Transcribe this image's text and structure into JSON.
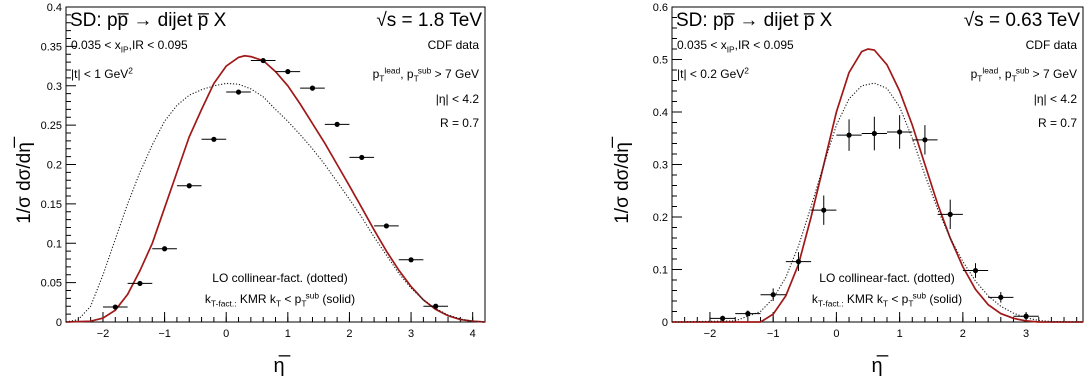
{
  "chart_data": [
    {
      "type": "scatter",
      "title": "SD: pp̅ → dijet p̅ X",
      "energy": "√s = 1.8 TeV",
      "xlabel": "η̅",
      "ylabel": "1/σ  dσ/dη̅",
      "xlim": [
        -2.6,
        4.2
      ],
      "ylim": [
        0,
        0.4
      ],
      "xticks": [
        -2,
        -1,
        0,
        1,
        2,
        3,
        4
      ],
      "yticks": [
        0,
        0.05,
        0.1,
        0.15,
        0.2,
        0.25,
        0.3,
        0.35,
        0.4
      ],
      "xtick_labels": [
        "−2",
        "−1",
        "0",
        "1",
        "2",
        "3",
        "4"
      ],
      "ytick_labels": [
        "0",
        "0.05",
        "0.1",
        "0.15",
        "0.2",
        "0.25",
        "0.3",
        "0.35",
        "0.4"
      ],
      "cuts_left": [
        "0.035 < x_IP,IR < 0.095",
        "|t| < 1 GeV^2"
      ],
      "cuts_right": [
        "CDF data",
        "p_T^lead, p_T^sub > 7 GeV",
        "|η| < 4.2",
        "R = 0.7"
      ],
      "legend_lines": [
        "LO collinear-fact. (dotted)",
        "k_T-fact.: KMR k_T < p_T^sub (solid)"
      ],
      "series": [
        {
          "name": "CDF data",
          "style": "points",
          "x": [
            -1.8,
            -1.4,
            -1.0,
            -0.6,
            -0.2,
            0.2,
            0.6,
            1.0,
            1.4,
            1.8,
            2.2,
            2.6,
            3.0,
            3.4
          ],
          "y": [
            0.019,
            0.049,
            0.093,
            0.173,
            0.232,
            0.292,
            0.332,
            0.318,
            0.297,
            0.251,
            0.209,
            0.122,
            0.079,
            0.02
          ],
          "xerr": 0.2,
          "yerr": 0.002
        },
        {
          "name": "k_T-fact.: KMR k_T < p_T^sub",
          "style": "solid",
          "x": [
            -2.6,
            -2.2,
            -2.0,
            -1.8,
            -1.6,
            -1.4,
            -1.2,
            -1.0,
            -0.8,
            -0.6,
            -0.4,
            -0.2,
            0.0,
            0.2,
            0.3,
            0.4,
            0.6,
            0.8,
            1.0,
            1.2,
            1.4,
            1.6,
            1.8,
            2.0,
            2.2,
            2.4,
            2.6,
            2.8,
            3.0,
            3.2,
            3.4,
            3.6,
            3.8,
            4.0,
            4.2
          ],
          "y": [
            0.0,
            0.001,
            0.005,
            0.015,
            0.035,
            0.065,
            0.1,
            0.145,
            0.19,
            0.235,
            0.27,
            0.303,
            0.325,
            0.336,
            0.338,
            0.337,
            0.332,
            0.318,
            0.3,
            0.277,
            0.252,
            0.227,
            0.2,
            0.173,
            0.145,
            0.117,
            0.09,
            0.066,
            0.045,
            0.028,
            0.016,
            0.008,
            0.003,
            0.001,
            0.0
          ]
        },
        {
          "name": "LO collinear-fact.",
          "style": "dotted",
          "x": [
            -2.6,
            -2.4,
            -2.2,
            -2.0,
            -1.8,
            -1.6,
            -1.4,
            -1.2,
            -1.0,
            -0.8,
            -0.6,
            -0.4,
            -0.2,
            0.0,
            0.2,
            0.4,
            0.6,
            0.8,
            1.0,
            1.2,
            1.4,
            1.6,
            1.8,
            2.0,
            2.2,
            2.4,
            2.6,
            2.8,
            3.0,
            3.2,
            3.4,
            3.6,
            3.8,
            4.0,
            4.2
          ],
          "y": [
            0.0,
            0.003,
            0.02,
            0.06,
            0.105,
            0.15,
            0.19,
            0.225,
            0.255,
            0.275,
            0.288,
            0.295,
            0.3,
            0.303,
            0.302,
            0.296,
            0.286,
            0.27,
            0.255,
            0.238,
            0.22,
            0.2,
            0.178,
            0.156,
            0.133,
            0.108,
            0.085,
            0.062,
            0.043,
            0.028,
            0.017,
            0.009,
            0.004,
            0.001,
            0.0
          ]
        }
      ]
    },
    {
      "type": "scatter",
      "title": "SD: pp̅ → dijet p̅ X",
      "energy": "√s = 0.63 TeV",
      "xlabel": "η̅",
      "ylabel": "1/σ  dσ/dη̅",
      "xlim": [
        -2.6,
        3.9
      ],
      "ylim": [
        0,
        0.6
      ],
      "xticks": [
        -2,
        -1,
        0,
        1,
        2,
        3
      ],
      "yticks": [
        0,
        0.1,
        0.2,
        0.3,
        0.4,
        0.5,
        0.6
      ],
      "xtick_labels": [
        "−2",
        "−1",
        "0",
        "1",
        "2",
        "3"
      ],
      "ytick_labels": [
        "0",
        "0.1",
        "0.2",
        "0.3",
        "0.4",
        "0.5",
        "0.6"
      ],
      "cuts_left": [
        "0.035 < x_IP,IR < 0.095",
        "|t| < 0.2 GeV^2"
      ],
      "cuts_right": [
        "CDF data",
        "p_T^lead, p_T^sub > 7 GeV",
        "|η| < 4.2",
        "R = 0.7"
      ],
      "legend_lines": [
        "LO collinear-fact. (dotted)",
        "k_T-fact.: KMR k_T < p_T^sub (solid)"
      ],
      "series": [
        {
          "name": "CDF data",
          "style": "points",
          "x": [
            -1.8,
            -1.4,
            -1.0,
            -0.6,
            -0.2,
            0.2,
            0.6,
            1.0,
            1.4,
            1.8,
            2.2,
            2.6,
            3.0
          ],
          "y": [
            0.007,
            0.016,
            0.052,
            0.115,
            0.213,
            0.356,
            0.359,
            0.362,
            0.347,
            0.205,
            0.098,
            0.047,
            0.011
          ],
          "xerr": 0.2,
          "yerr": [
            0.005,
            0.006,
            0.012,
            0.018,
            0.028,
            0.03,
            0.032,
            0.032,
            0.028,
            0.028,
            0.014,
            0.01,
            0.006
          ]
        },
        {
          "name": "k_T-fact.: KMR k_T < p_T^sub",
          "style": "solid",
          "x": [
            -2.6,
            -1.2,
            -1.0,
            -0.8,
            -0.6,
            -0.4,
            -0.2,
            0.0,
            0.2,
            0.4,
            0.5,
            0.6,
            0.8,
            1.0,
            1.2,
            1.4,
            1.6,
            1.8,
            2.0,
            2.2,
            2.4,
            2.6,
            2.8,
            3.0,
            3.2,
            3.9
          ],
          "y": [
            0.0,
            0.0,
            0.015,
            0.05,
            0.11,
            0.2,
            0.3,
            0.4,
            0.475,
            0.515,
            0.52,
            0.518,
            0.49,
            0.44,
            0.375,
            0.3,
            0.225,
            0.16,
            0.105,
            0.062,
            0.033,
            0.016,
            0.007,
            0.002,
            0.0,
            0.0
          ]
        },
        {
          "name": "LO collinear-fact.",
          "style": "dotted",
          "x": [
            -2.6,
            -1.6,
            -1.2,
            -1.0,
            -0.8,
            -0.6,
            -0.4,
            -0.2,
            0.0,
            0.2,
            0.4,
            0.6,
            0.8,
            1.0,
            1.2,
            1.4,
            1.6,
            1.8,
            2.0,
            2.2,
            2.4,
            2.6,
            2.8,
            3.0,
            3.2,
            3.4,
            3.9
          ],
          "y": [
            0.0,
            0.002,
            0.02,
            0.045,
            0.085,
            0.145,
            0.22,
            0.3,
            0.375,
            0.425,
            0.45,
            0.455,
            0.445,
            0.41,
            0.35,
            0.28,
            0.215,
            0.16,
            0.115,
            0.078,
            0.05,
            0.03,
            0.017,
            0.008,
            0.003,
            0.001,
            0.0
          ]
        }
      ]
    }
  ]
}
